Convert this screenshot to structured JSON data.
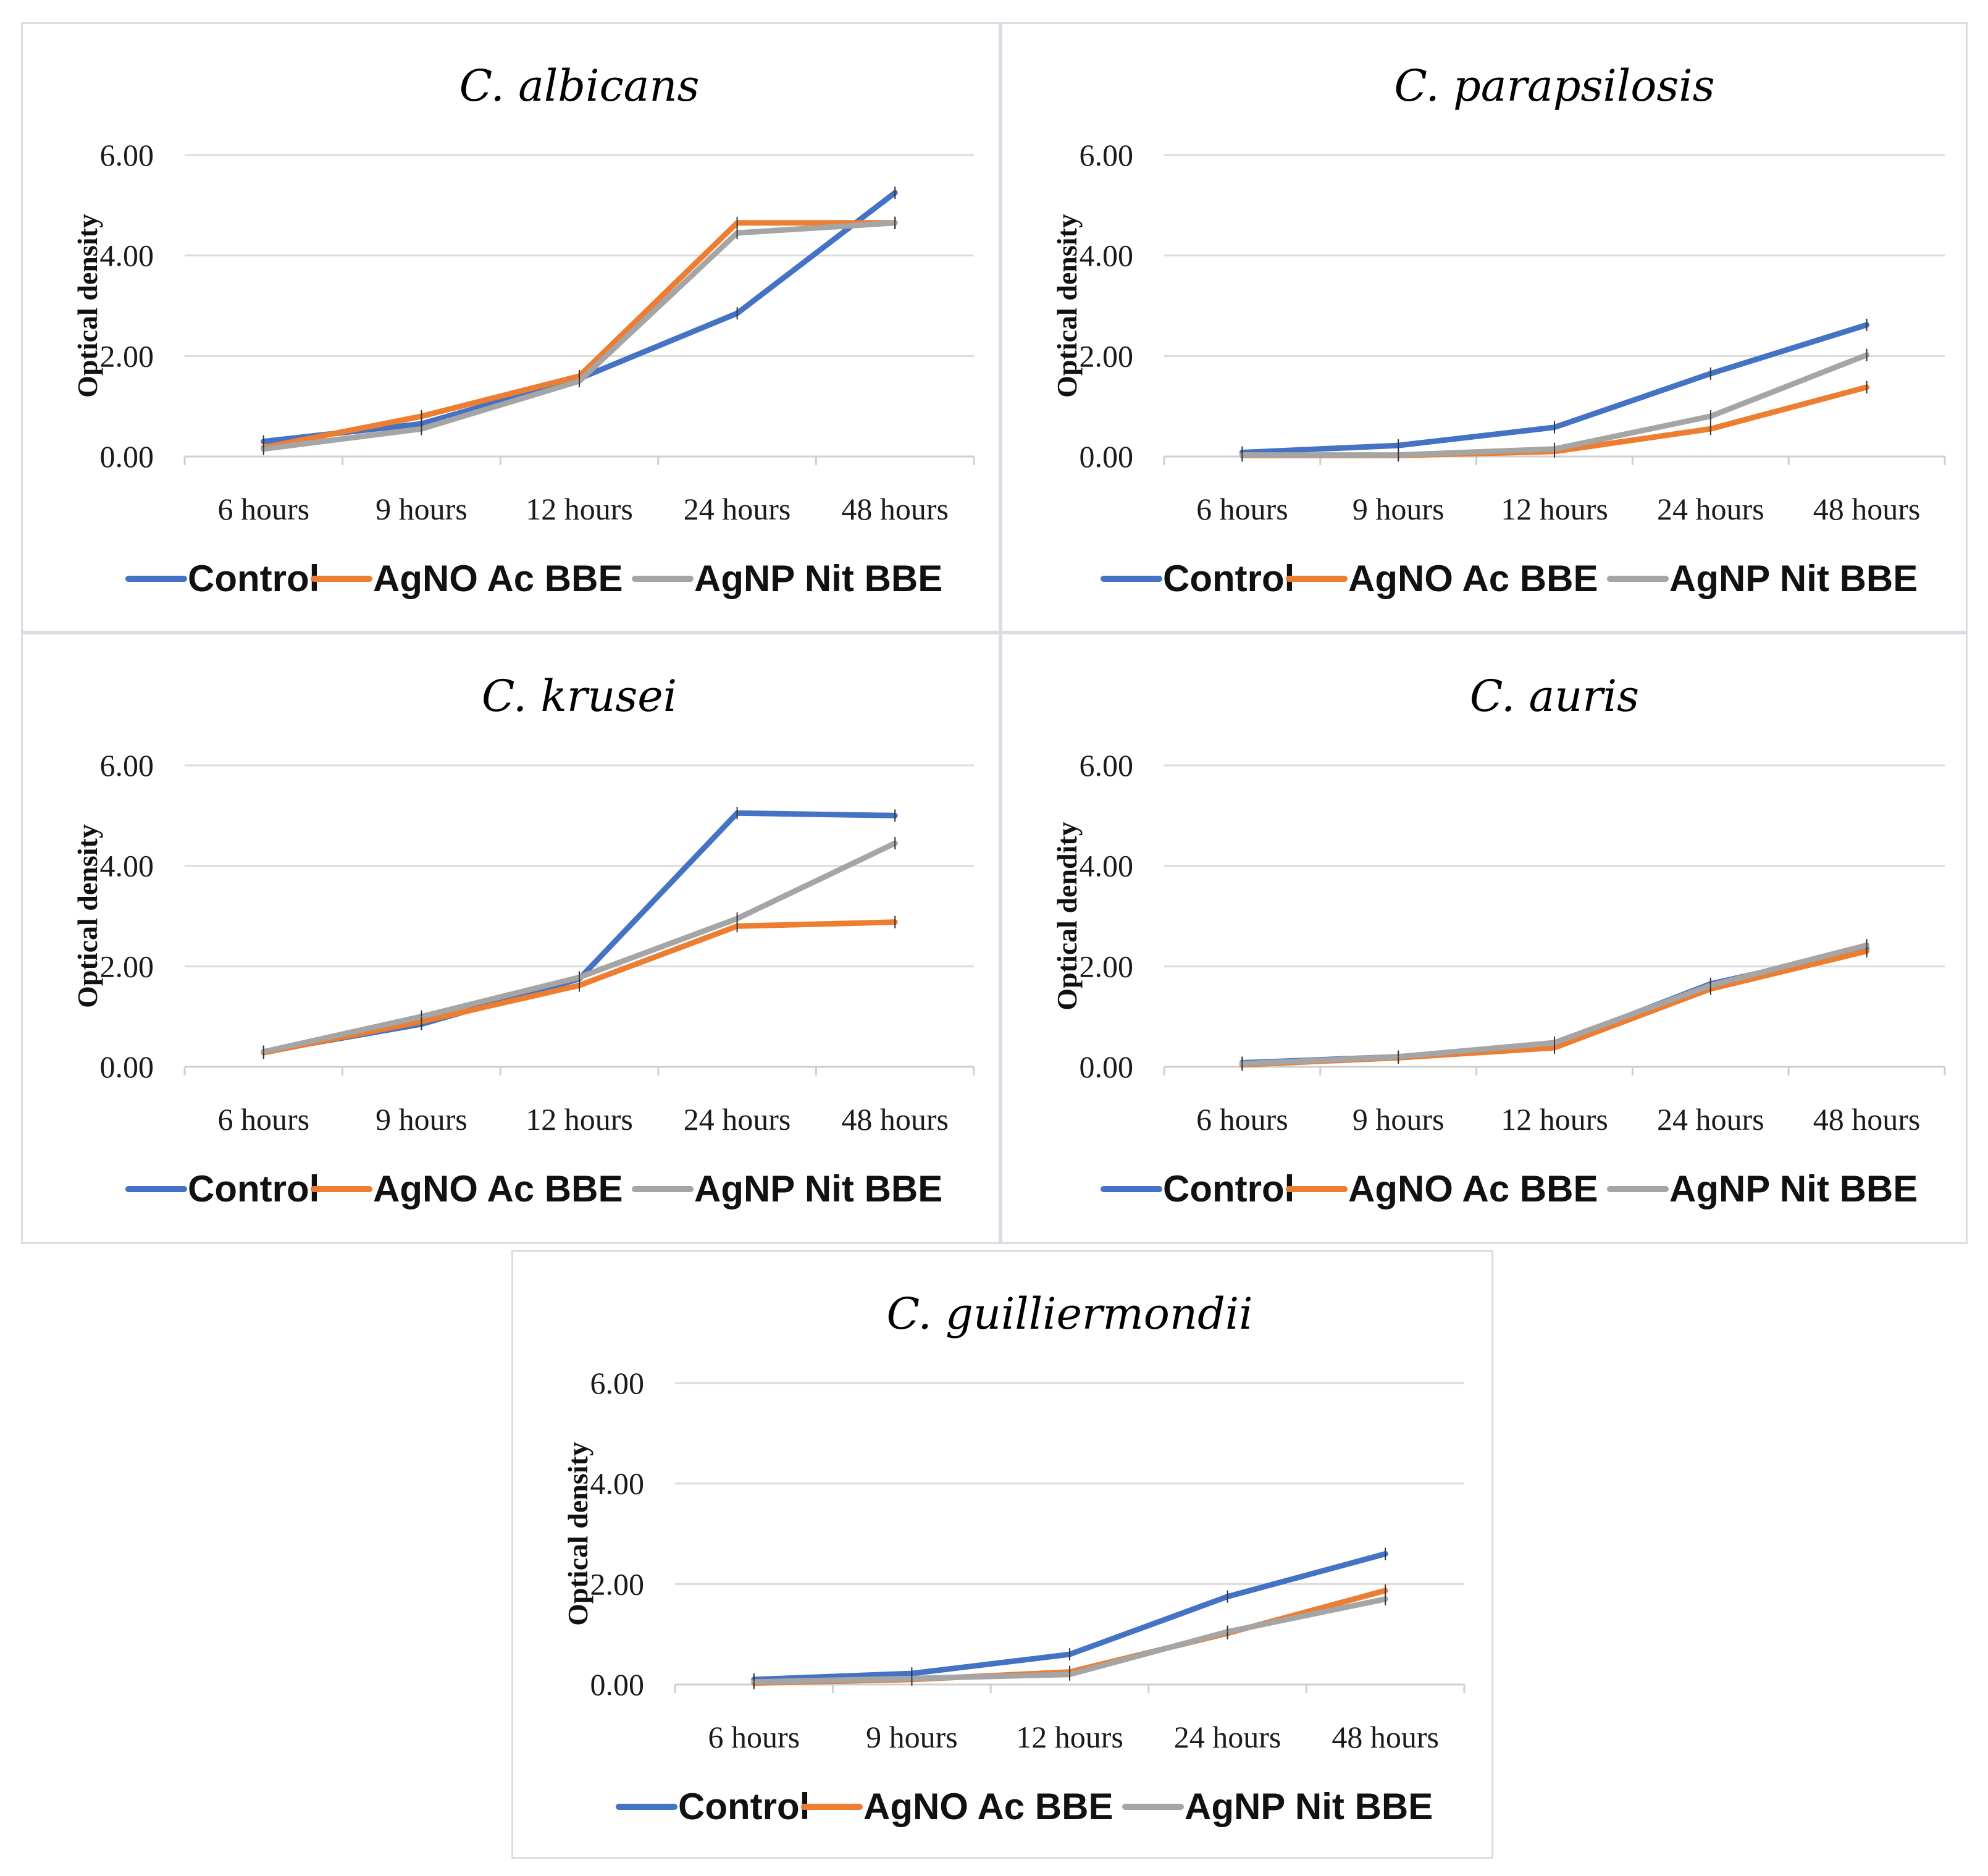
{
  "chart_data": [
    {
      "type": "line",
      "title": "C. albicans",
      "ylabel": "Optical density",
      "xlabel": "",
      "ylim": [
        0,
        6
      ],
      "yticks": [
        "0.00",
        "2.00",
        "4.00",
        "6.00"
      ],
      "categories": [
        "6 hours",
        "9 hours",
        "12 hours",
        "24 hours",
        "48 hours"
      ],
      "series": [
        {
          "name": "Control",
          "color": "#4472C4",
          "values": [
            0.3,
            0.65,
            1.55,
            2.85,
            5.25
          ]
        },
        {
          "name": "AgNO Ac BBE",
          "color": "#ED7D31",
          "values": [
            0.18,
            0.8,
            1.6,
            4.65,
            4.65
          ]
        },
        {
          "name": "AgNP Nit BBE",
          "color": "#A5A5A5",
          "values": [
            0.15,
            0.55,
            1.5,
            4.45,
            4.65
          ]
        }
      ]
    },
    {
      "type": "line",
      "title": "C. parapsilosis",
      "ylabel": "Optical density",
      "xlabel": "",
      "ylim": [
        0,
        6
      ],
      "yticks": [
        "0.00",
        "2.00",
        "4.00",
        "6.00"
      ],
      "categories": [
        "6 hours",
        "9 hours",
        "12 hours",
        "24 hours",
        "48 hours"
      ],
      "series": [
        {
          "name": "Control",
          "color": "#4472C4",
          "values": [
            0.08,
            0.22,
            0.58,
            1.65,
            2.62
          ]
        },
        {
          "name": "AgNO Ac BBE",
          "color": "#ED7D31",
          "values": [
            0.02,
            0.02,
            0.1,
            0.55,
            1.38
          ]
        },
        {
          "name": "AgNP Nit BBE",
          "color": "#A5A5A5",
          "values": [
            0.03,
            0.03,
            0.15,
            0.8,
            2.02
          ]
        }
      ]
    },
    {
      "type": "line",
      "title": "C. krusei",
      "ylabel": "Optical density",
      "xlabel": "",
      "ylim": [
        0,
        6
      ],
      "yticks": [
        "0.00",
        "2.00",
        "4.00",
        "6.00"
      ],
      "categories": [
        "6 hours",
        "9 hours",
        "12 hours",
        "24 hours",
        "48 hours"
      ],
      "series": [
        {
          "name": "Control",
          "color": "#4472C4",
          "values": [
            0.3,
            0.85,
            1.75,
            5.05,
            5.0
          ]
        },
        {
          "name": "AgNO Ac BBE",
          "color": "#ED7D31",
          "values": [
            0.28,
            0.9,
            1.62,
            2.8,
            2.88
          ]
        },
        {
          "name": "AgNP Nit BBE",
          "color": "#A5A5A5",
          "values": [
            0.3,
            1.0,
            1.78,
            2.95,
            4.45
          ]
        }
      ]
    },
    {
      "type": "line",
      "title": "C. auris",
      "ylabel": "Optical dendity",
      "xlabel": "",
      "ylim": [
        0,
        6
      ],
      "yticks": [
        "0.00",
        "2.00",
        "4.00",
        "6.00"
      ],
      "categories": [
        "6 hours",
        "9 hours",
        "12 hours",
        "24 hours",
        "48 hours"
      ],
      "series": [
        {
          "name": "Control",
          "color": "#4472C4",
          "values": [
            0.08,
            0.2,
            0.45,
            1.65,
            2.35
          ]
        },
        {
          "name": "AgNO Ac BBE",
          "color": "#ED7D31",
          "values": [
            0.04,
            0.18,
            0.38,
            1.55,
            2.3
          ]
        },
        {
          "name": "AgNP Nit BBE",
          "color": "#A5A5A5",
          "values": [
            0.06,
            0.2,
            0.48,
            1.62,
            2.42
          ]
        }
      ]
    },
    {
      "type": "line",
      "title": "C. guilliermondii",
      "ylabel": "Optical density",
      "xlabel": "",
      "ylim": [
        0,
        6
      ],
      "yticks": [
        "0.00",
        "2.00",
        "4.00",
        "6.00"
      ],
      "categories": [
        "6 hours",
        "9 hours",
        "12 hours",
        "24 hours",
        "48 hours"
      ],
      "series": [
        {
          "name": "Control",
          "color": "#4472C4",
          "values": [
            0.1,
            0.22,
            0.6,
            1.75,
            2.6
          ]
        },
        {
          "name": "AgNO Ac BBE",
          "color": "#ED7D31",
          "values": [
            0.03,
            0.1,
            0.25,
            1.02,
            1.87
          ]
        },
        {
          "name": "AgNP Nit BBE",
          "color": "#A5A5A5",
          "values": [
            0.05,
            0.12,
            0.2,
            1.05,
            1.7
          ]
        }
      ]
    }
  ]
}
